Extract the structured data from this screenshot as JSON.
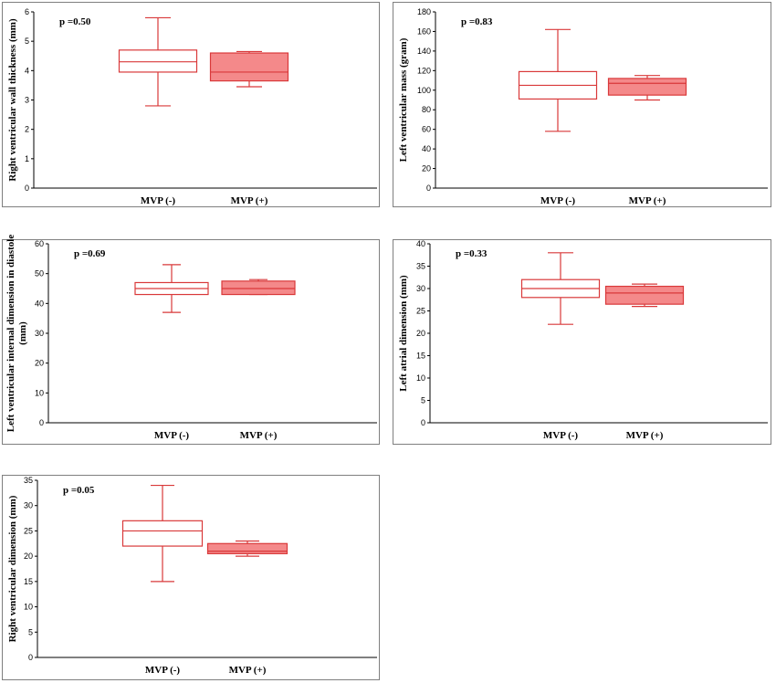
{
  "colors": {
    "box_stroke": "#d9393a",
    "box_fill_mvp_pos": "#f4898a",
    "frame": "#7f7f7f",
    "axis": "#000000"
  },
  "chart_data": [
    {
      "type": "box",
      "ylabel": "Right ventricular wall thickness (mm)",
      "annotation": "p =0.50",
      "categories": [
        "MVP (-)",
        "MVP (+)"
      ],
      "ylim": [
        0,
        6
      ],
      "yticks": [
        "0",
        "1",
        "2",
        "3",
        "4",
        "5",
        "6"
      ],
      "boxes": [
        {
          "name": "MVP (-)",
          "min": 2.8,
          "q1": 3.95,
          "median": 4.3,
          "q3": 4.7,
          "max": 5.8,
          "filled": false
        },
        {
          "name": "MVP (+)",
          "min": 3.45,
          "q1": 3.65,
          "median": 3.95,
          "q3": 4.6,
          "max": 4.65,
          "filled": true
        }
      ]
    },
    {
      "type": "box",
      "ylabel": "Left ventricular mass (gram)",
      "annotation": "p =0.83",
      "categories": [
        "MVP (-)",
        "MVP (+)"
      ],
      "ylim": [
        0,
        180
      ],
      "yticks": [
        "0",
        "20",
        "40",
        "60",
        "80",
        "100",
        "120",
        "140",
        "160",
        "180"
      ],
      "boxes": [
        {
          "name": "MVP (-)",
          "min": 58,
          "q1": 91,
          "median": 105,
          "q3": 119,
          "max": 162,
          "filled": false
        },
        {
          "name": "MVP (+)",
          "min": 90,
          "q1": 95,
          "median": 107,
          "q3": 112,
          "max": 115,
          "filled": true
        }
      ]
    },
    {
      "type": "box",
      "ylabel": "Left ventricular internal dimension in diastole (mm)",
      "annotation": "p =0.69",
      "categories": [
        "MVP (-)",
        "MVP (+)"
      ],
      "ylim": [
        0,
        60
      ],
      "yticks": [
        "0",
        "10",
        "20",
        "30",
        "40",
        "50",
        "60"
      ],
      "boxes": [
        {
          "name": "MVP (-)",
          "min": 37,
          "q1": 43,
          "median": 45,
          "q3": 47,
          "max": 53,
          "filled": false
        },
        {
          "name": "MVP (+)",
          "min": 43,
          "q1": 43,
          "median": 45,
          "q3": 47.5,
          "max": 48,
          "filled": true
        }
      ]
    },
    {
      "type": "box",
      "ylabel": "Left atrial dimension (mm)",
      "annotation": "p =0.33",
      "categories": [
        "MVP (-)",
        "MVP (+)"
      ],
      "ylim": [
        0,
        40
      ],
      "yticks": [
        "0",
        "5",
        "10",
        "15",
        "20",
        "25",
        "30",
        "35",
        "40"
      ],
      "boxes": [
        {
          "name": "MVP (-)",
          "min": 22,
          "q1": 28,
          "median": 30,
          "q3": 32,
          "max": 38,
          "filled": false
        },
        {
          "name": "MVP (+)",
          "min": 26,
          "q1": 26.5,
          "median": 29,
          "q3": 30.5,
          "max": 31,
          "filled": true
        }
      ]
    },
    {
      "type": "box",
      "ylabel": "Right ventricular dimension (mm)",
      "annotation": "p =0.05",
      "categories": [
        "MVP (-)",
        "MVP (+)"
      ],
      "ylim": [
        0,
        35
      ],
      "yticks": [
        "0",
        "5",
        "10",
        "15",
        "20",
        "25",
        "30",
        "35"
      ],
      "boxes": [
        {
          "name": "MVP (-)",
          "min": 15,
          "q1": 22,
          "median": 25,
          "q3": 27,
          "max": 34,
          "filled": false
        },
        {
          "name": "MVP (+)",
          "min": 20,
          "q1": 20.5,
          "median": 21,
          "q3": 22.5,
          "max": 23,
          "filled": true
        }
      ]
    }
  ]
}
